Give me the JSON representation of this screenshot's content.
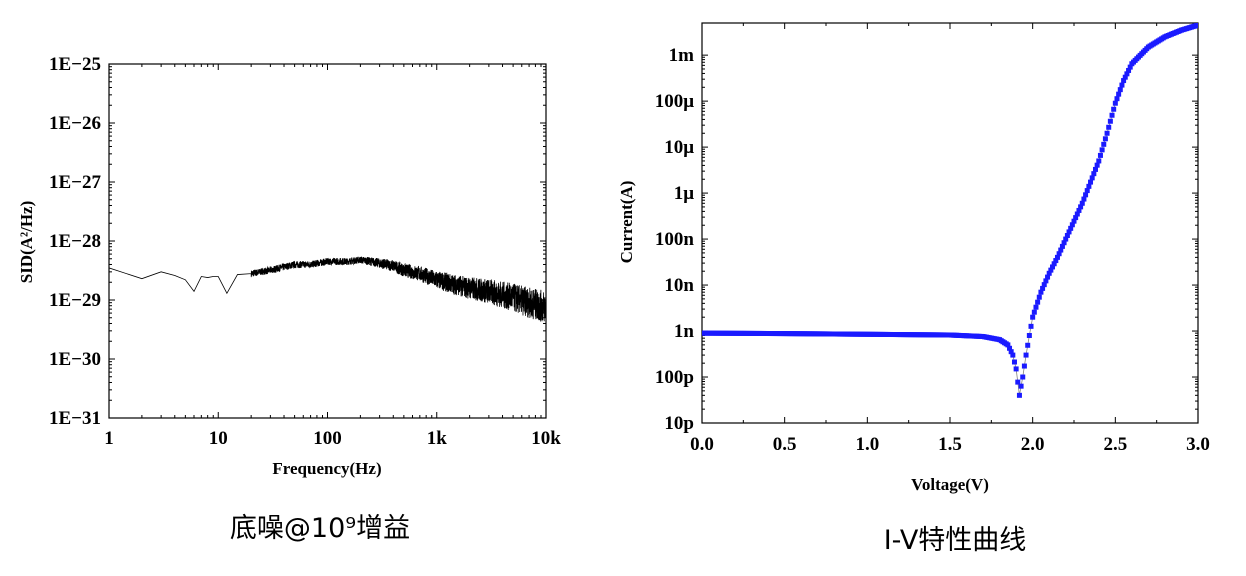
{
  "chart_data": [
    {
      "type": "line",
      "caption": "底噪@10⁹增益",
      "xlabel": "Frequency(Hz)",
      "ylabel": "SID(A²/Hz)",
      "xscale": "log",
      "yscale": "log",
      "xlim": [
        1,
        10000
      ],
      "ylim": [
        1e-31,
        1e-25
      ],
      "xticks": [
        {
          "value": 1,
          "label": "1"
        },
        {
          "value": 10,
          "label": "10"
        },
        {
          "value": 100,
          "label": "100"
        },
        {
          "value": 1000,
          "label": "1k"
        },
        {
          "value": 10000,
          "label": "10k"
        }
      ],
      "yticks": [
        {
          "value": 1e-25,
          "label": "1E−25"
        },
        {
          "value": 1e-26,
          "label": "1E−26"
        },
        {
          "value": 1e-27,
          "label": "1E−27"
        },
        {
          "value": 1e-28,
          "label": "1E−28"
        },
        {
          "value": 1e-29,
          "label": "1E−29"
        },
        {
          "value": 1e-30,
          "label": "1E−30"
        },
        {
          "value": 1e-31,
          "label": "1E−31"
        }
      ],
      "series": [
        {
          "color": "#000000",
          "x": [
            1,
            2,
            3,
            4,
            5,
            6,
            7,
            8,
            9,
            10,
            12,
            15,
            20,
            30,
            50,
            70,
            100,
            150,
            200,
            250,
            300,
            400,
            500,
            700,
            1000,
            1500,
            2000,
            3000,
            5000,
            7000,
            10000
          ],
          "y": [
            3.5e-29,
            2.3e-29,
            3e-29,
            2.6e-29,
            2.2e-29,
            1.4e-29,
            2.5e-29,
            2.4e-29,
            2.5e-29,
            2.5e-29,
            1.3e-29,
            2.7e-29,
            2.8e-29,
            3.2e-29,
            4e-29,
            4e-29,
            4.5e-29,
            4.5e-29,
            4.8e-29,
            4.5e-29,
            4.2e-29,
            3.8e-29,
            3.2e-29,
            2.8e-29,
            2.2e-29,
            1.8e-29,
            1.6e-29,
            1.4e-29,
            1.1e-29,
            9e-30,
            7.5e-30
          ]
        }
      ]
    },
    {
      "type": "scatter",
      "caption": "I-V特性曲线",
      "xlabel": "Voltage(V)",
      "ylabel": "Current(A)",
      "xscale": "linear",
      "yscale": "log",
      "xlim": [
        0,
        3.0
      ],
      "ylim": [
        1e-11,
        0.005
      ],
      "xticks": [
        {
          "value": 0.0,
          "label": "0.0"
        },
        {
          "value": 0.5,
          "label": "0.5"
        },
        {
          "value": 1.0,
          "label": "1.0"
        },
        {
          "value": 1.5,
          "label": "1.5"
        },
        {
          "value": 2.0,
          "label": "2.0"
        },
        {
          "value": 2.5,
          "label": "2.5"
        },
        {
          "value": 3.0,
          "label": "3.0"
        }
      ],
      "yticks": [
        {
          "value": 1e-11,
          "label": "10p"
        },
        {
          "value": 1e-10,
          "label": "100p"
        },
        {
          "value": 1e-09,
          "label": "1n"
        },
        {
          "value": 1e-08,
          "label": "10n"
        },
        {
          "value": 1e-07,
          "label": "100n"
        },
        {
          "value": 1e-06,
          "label": "1μ"
        },
        {
          "value": 1e-05,
          "label": "10μ"
        },
        {
          "value": 0.0001,
          "label": "100μ"
        },
        {
          "value": 0.001,
          "label": "1m"
        }
      ],
      "series": [
        {
          "color": "#1a1aff",
          "x": [
            0.0,
            0.5,
            1.0,
            1.5,
            1.7,
            1.8,
            1.85,
            1.88,
            1.9,
            1.92,
            1.94,
            1.96,
            1.98,
            2.0,
            2.05,
            2.1,
            2.15,
            2.2,
            2.3,
            2.4,
            2.45,
            2.5,
            2.55,
            2.6,
            2.7,
            2.8,
            2.9,
            3.0
          ],
          "y": [
            9e-10,
            8.8e-10,
            8.5e-10,
            8.2e-10,
            7.6e-10,
            6.5e-10,
            5e-10,
            3e-10,
            1.5e-10,
            4e-11,
            1e-10,
            3e-10,
            8e-10,
            2e-09,
            7e-09,
            1.8e-08,
            4e-08,
            1e-07,
            6e-07,
            5e-06,
            2e-05,
            9e-05,
            0.00028,
            0.00065,
            0.0015,
            0.0025,
            0.0035,
            0.0045
          ]
        }
      ]
    }
  ]
}
